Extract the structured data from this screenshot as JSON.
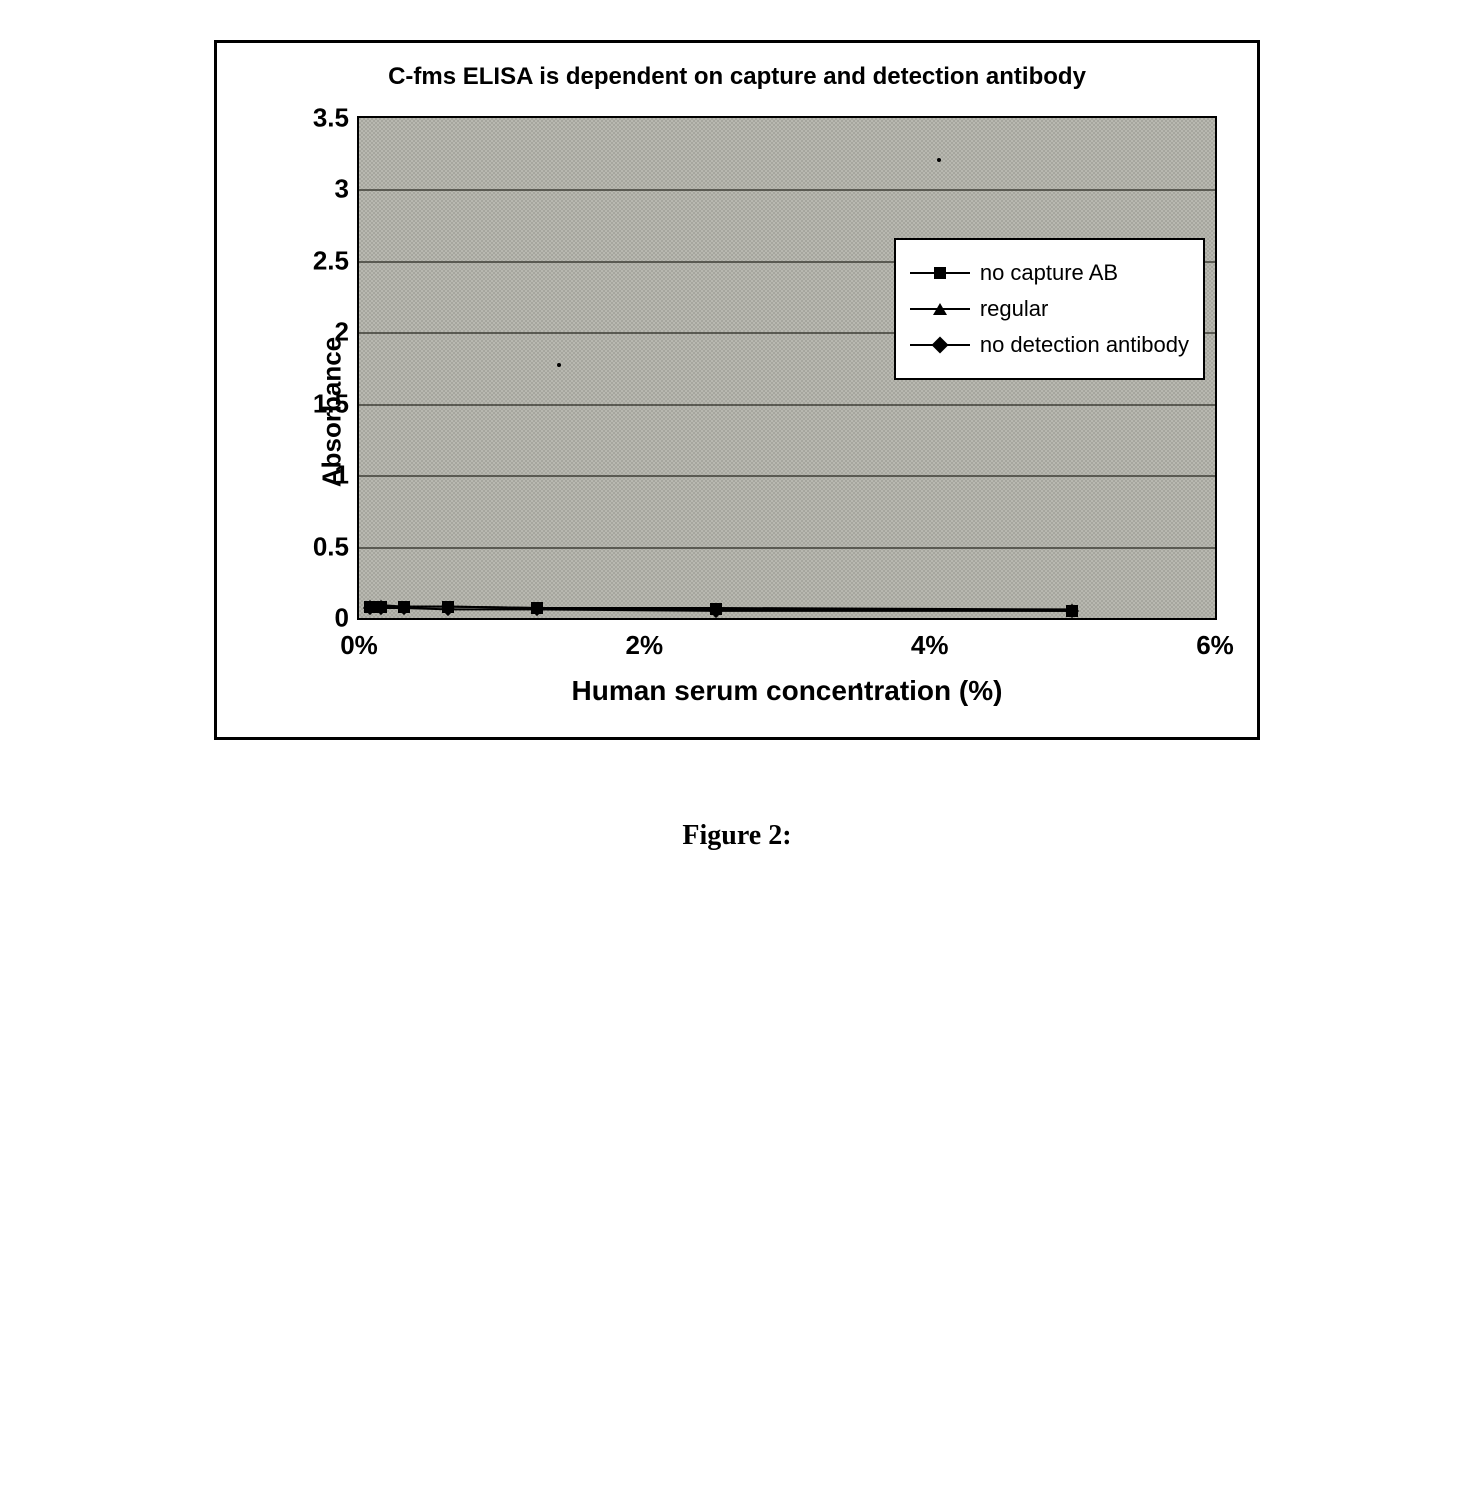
{
  "chart": {
    "type": "line",
    "title": "C-fms ELISA is dependent on capture and detection antibody",
    "title_fontsize": 24,
    "xlabel": "Human serum concentration (%)",
    "ylabel": "Absorbance",
    "label_fontsize": 26,
    "xlim": [
      0,
      6
    ],
    "ylim": [
      0,
      3.5
    ],
    "xticks": [
      0,
      2,
      4,
      6
    ],
    "xtick_labels": [
      "0%",
      "2%",
      "4%",
      "6%"
    ],
    "yticks": [
      0,
      0.5,
      1,
      1.5,
      2,
      2.5,
      3,
      3.5
    ],
    "ytick_labels": [
      "0",
      "0.5",
      "1",
      "1.5",
      "2",
      "2.5",
      "3",
      "3.5"
    ],
    "background_color": "#b8b8b0",
    "grid_color": "#5a5a52",
    "border_color": "#000000",
    "series": [
      {
        "label": "no capture AB",
        "marker": "square",
        "color": "#000000",
        "x": [
          0.078,
          0.156,
          0.313,
          0.625,
          1.25,
          2.5,
          5.0
        ],
        "y": [
          0.08,
          0.08,
          0.08,
          0.08,
          0.07,
          0.06,
          0.05
        ]
      },
      {
        "label": "regular",
        "marker": "triangle",
        "color": "#000000",
        "x": [
          0.078,
          0.156,
          0.313,
          0.625,
          1.25,
          2.5,
          5.0
        ],
        "y": [
          0.09,
          0.09,
          0.08,
          0.08,
          0.07,
          0.07,
          0.06
        ]
      },
      {
        "label": "no detection antibody",
        "marker": "diamond",
        "color": "#000000",
        "x": [
          0.078,
          0.156,
          0.313,
          0.625,
          1.25,
          2.5,
          5.0
        ],
        "y": [
          0.07,
          0.07,
          0.07,
          0.06,
          0.06,
          0.05,
          0.05
        ]
      }
    ],
    "legend": {
      "position": "right-inside",
      "background": "#ffffff",
      "border": "#000000"
    }
  },
  "caption": "Figure 2:"
}
